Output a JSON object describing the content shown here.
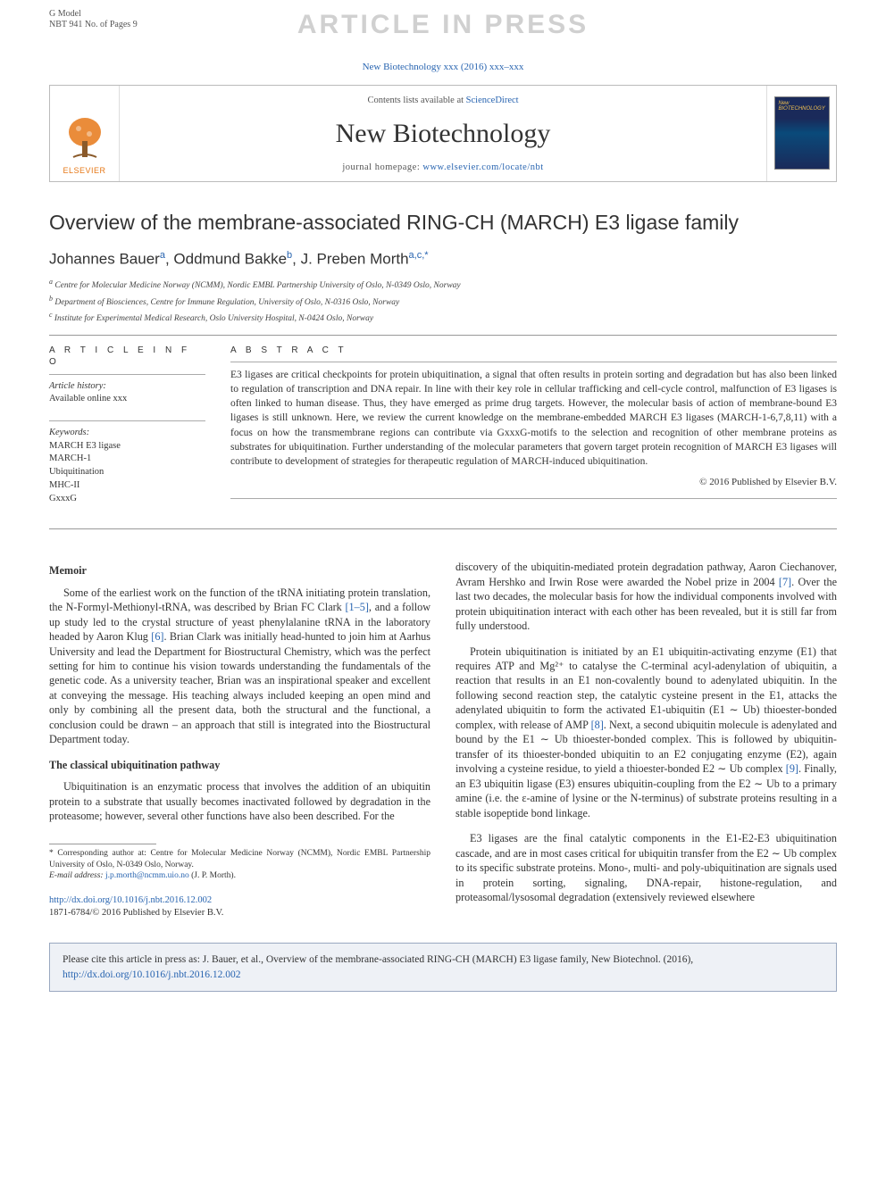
{
  "gmodel": {
    "line1": "G Model",
    "line2": "NBT 941 No. of Pages 9"
  },
  "watermark": "ARTICLE IN PRESS",
  "citation_top": "New Biotechnology xxx (2016) xxx–xxx",
  "header": {
    "contents_prefix": "Contents lists available at ",
    "contents_link": "ScienceDirect",
    "journal_name": "New Biotechnology",
    "homepage_prefix": "journal homepage: ",
    "homepage_url": "www.elsevier.com/locate/nbt",
    "publisher_label": "ELSEVIER",
    "cover_label": "New BIOTECHNOLOGY"
  },
  "article": {
    "title": "Overview of the membrane-associated RING-CH (MARCH) E3 ligase family",
    "authors_html": "Johannes Bauer<sup>a</sup>, Oddmund Bakke<sup>b</sup>, J. Preben Morth<sup>a,c,*</sup>",
    "affiliations": [
      "a Centre for Molecular Medicine Norway (NCMM), Nordic EMBL Partnership University of Oslo, N-0349 Oslo, Norway",
      "b Department of Biosciences, Centre for Immune Regulation, University of Oslo, N-0316 Oslo, Norway",
      "c Institute for Experimental Medical Research, Oslo University Hospital, N-0424 Oslo, Norway"
    ]
  },
  "article_info": {
    "heading": "A R T I C L E  I N F O",
    "history_label": "Article history:",
    "history_value": "Available online xxx",
    "keywords_label": "Keywords:",
    "keywords": [
      "MARCH E3 ligase",
      "MARCH-1",
      "Ubiquitination",
      "MHC-II",
      "GxxxG"
    ]
  },
  "abstract": {
    "heading": "A B S T R A C T",
    "text": "E3 ligases are critical checkpoints for protein ubiquitination, a signal that often results in protein sorting and degradation but has also been linked to regulation of transcription and DNA repair. In line with their key role in cellular trafficking and cell-cycle control, malfunction of E3 ligases is often linked to human disease. Thus, they have emerged as prime drug targets. However, the molecular basis of action of membrane-bound E3 ligases is still unknown. Here, we review the current knowledge on the membrane-embedded MARCH E3 ligases (MARCH-1-6,7,8,11) with a focus on how the transmembrane regions can contribute via GxxxG-motifs to the selection and recognition of other membrane proteins as substrates for ubiquitination. Further understanding of the molecular parameters that govern target protein recognition of MARCH E3 ligases will contribute to development of strategies for therapeutic regulation of MARCH-induced ubiquitination.",
    "copyright": "© 2016 Published by Elsevier B.V."
  },
  "body": {
    "left": {
      "h1": "Memoir",
      "p1": "Some of the earliest work on the function of the tRNA initiating protein translation, the N-Formyl-Methionyl-tRNA, was described by Brian FC Clark [1–5], and a follow up study led to the crystal structure of yeast phenylalanine tRNA in the laboratory headed by Aaron Klug [6]. Brian Clark was initially head-hunted to join him at Aarhus University and lead the Department for Biostructural Chemistry, which was the perfect setting for him to continue his vision towards understanding the fundamentals of the genetic code. As a university teacher, Brian was an inspirational speaker and excellent at conveying the message. His teaching always included keeping an open mind and only by combining all the present data, both the structural and the functional, a conclusion could be drawn – an approach that still is integrated into the Biostructural Department today.",
      "h2": "The classical ubiquitination pathway",
      "p2": "Ubiquitination is an enzymatic process that involves the addition of an ubiquitin protein to a substrate that usually becomes inactivated followed by degradation in the proteasome; however, several other functions have also been described. For the"
    },
    "right": {
      "p1": "discovery of the ubiquitin-mediated protein degradation pathway, Aaron Ciechanover, Avram Hershko and Irwin Rose were awarded the Nobel prize in 2004 [7]. Over the last two decades, the molecular basis for how the individual components involved with protein ubiquitination interact with each other has been revealed, but it is still far from fully understood.",
      "p2": "Protein ubiquitination is initiated by an E1 ubiquitin-activating enzyme (E1) that requires ATP and Mg²⁺ to catalyse the C-terminal acyl-adenylation of ubiquitin, a reaction that results in an E1 non-covalently bound to adenylated ubiquitin. In the following second reaction step, the catalytic cysteine present in the E1, attacks the adenylated ubiquitin to form the activated E1-ubiquitin (E1 ∼ Ub) thioester-bonded complex, with release of AMP [8]. Next, a second ubiquitin molecule is adenylated and bound by the E1 ∼ Ub thioester-bonded complex. This is followed by ubiquitin-transfer of its thioester-bonded ubiquitin to an E2 conjugating enzyme (E2), again involving a cysteine residue, to yield a thioester-bonded E2 ∼ Ub complex [9]. Finally, an E3 ubiquitin ligase (E3) ensures ubiquitin-coupling from the E2 ∼ Ub to a primary amine (i.e. the ε-amine of lysine or the N-terminus) of substrate proteins resulting in a stable isopeptide bond linkage.",
      "p3": "E3 ligases are the final catalytic components in the E1-E2-E3 ubiquitination cascade, and are in most cases critical for ubiquitin transfer from the E2 ∼ Ub complex to its specific substrate proteins. Mono-, multi- and poly-ubiquitination are signals used in protein sorting, signaling, DNA-repair, histone-regulation, and proteasomal/lysosomal degradation (extensively reviewed elsewhere"
    }
  },
  "footnote": {
    "corresponding": "* Corresponding author at: Centre for Molecular Medicine Norway (NCMM), Nordic EMBL Partnership University of Oslo, N-0349 Oslo, Norway.",
    "email_label": "E-mail address: ",
    "email": "j.p.morth@ncmm.uio.no",
    "email_suffix": " (J. P. Morth)."
  },
  "doi": {
    "url": "http://dx.doi.org/10.1016/j.nbt.2016.12.002",
    "issn_line": "1871-6784/© 2016 Published by Elsevier B.V."
  },
  "cite_box": {
    "prefix": "Please cite this article in press as: J. Bauer, et al., Overview of the membrane-associated RING-CH (MARCH) E3 ligase family, New Biotechnol. (2016), ",
    "url": "http://dx.doi.org/10.1016/j.nbt.2016.12.002"
  },
  "colors": {
    "link": "#2864b0",
    "watermark": "#d0d0d0",
    "elsevier_orange": "#e67817",
    "cite_box_bg": "#eef1f6",
    "cite_box_border": "#9aa8c0"
  }
}
